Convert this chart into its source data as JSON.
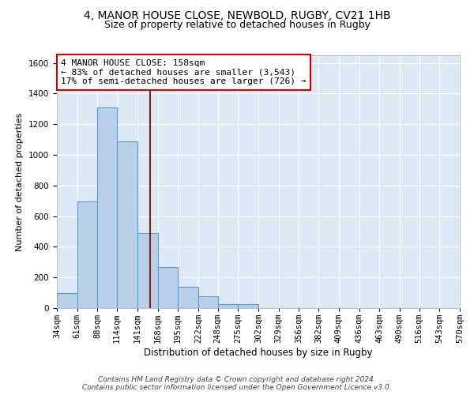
{
  "title": "4, MANOR HOUSE CLOSE, NEWBOLD, RUGBY, CV21 1HB",
  "subtitle": "Size of property relative to detached houses in Rugby",
  "xlabel": "Distribution of detached houses by size in Rugby",
  "ylabel": "Number of detached properties",
  "bin_edges": [
    34,
    61,
    88,
    114,
    141,
    168,
    195,
    222,
    248,
    275,
    302,
    329,
    356,
    382,
    409,
    436,
    463,
    490,
    516,
    543,
    570
  ],
  "bar_heights": [
    100,
    695,
    1310,
    1090,
    490,
    270,
    140,
    75,
    28,
    28,
    0,
    0,
    0,
    0,
    0,
    0,
    0,
    0,
    0,
    0
  ],
  "property_size": 158,
  "bar_color": "#b8d0e8",
  "bar_edge_color": "#5b9bd5",
  "vline_color": "#8b1a1a",
  "annotation_box_color": "#ffffff",
  "annotation_border_color": "#cc0000",
  "background_color": "#dce9f5",
  "grid_color": "#ffffff",
  "title_fontsize": 10,
  "subtitle_fontsize": 9,
  "xlabel_fontsize": 8.5,
  "ylabel_fontsize": 8,
  "tick_fontsize": 7.5,
  "annotation_fontsize": 8,
  "footer_text": "Contains HM Land Registry data © Crown copyright and database right 2024.\nContains public sector information licensed under the Open Government Licence v3.0.",
  "annotation_line1": "4 MANOR HOUSE CLOSE: 158sqm",
  "annotation_line2": "← 83% of detached houses are smaller (3,543)",
  "annotation_line3": "17% of semi-detached houses are larger (726) →",
  "ylim": [
    0,
    1650
  ],
  "yticks": [
    0,
    200,
    400,
    600,
    800,
    1000,
    1200,
    1400,
    1600
  ]
}
